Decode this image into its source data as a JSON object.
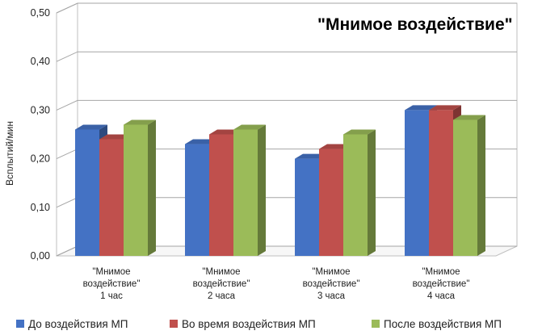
{
  "chart_data": {
    "type": "bar",
    "title": "\"Мнимое воздействие\"",
    "xlabel": "",
    "ylabel": "Всплытий/мин",
    "ylim": [
      0,
      0.5
    ],
    "yticks": [
      "0,00",
      "0,10",
      "0,20",
      "0,30",
      "0,40",
      "0,50"
    ],
    "grid": true,
    "legend_position": "bottom",
    "categories": [
      [
        "\"Мнимое",
        "воздействие\"",
        "1 час"
      ],
      [
        "\"Мнимое",
        "воздействие\"",
        "2 часа"
      ],
      [
        "\"Мнимое",
        "воздействие\"",
        "3 часа"
      ],
      [
        "\"Мнимое",
        "воздействие\"",
        "4 часа"
      ]
    ],
    "series": [
      {
        "name": "До воздействия МП",
        "color": "#4472C4",
        "values": [
          0.26,
          0.23,
          0.2,
          0.3
        ]
      },
      {
        "name": "Во время воздействия МП",
        "color": "#C0504D",
        "values": [
          0.24,
          0.25,
          0.22,
          0.3
        ]
      },
      {
        "name": "После воздействия МП",
        "color": "#9BBB59",
        "values": [
          0.27,
          0.26,
          0.25,
          0.28
        ]
      }
    ]
  }
}
